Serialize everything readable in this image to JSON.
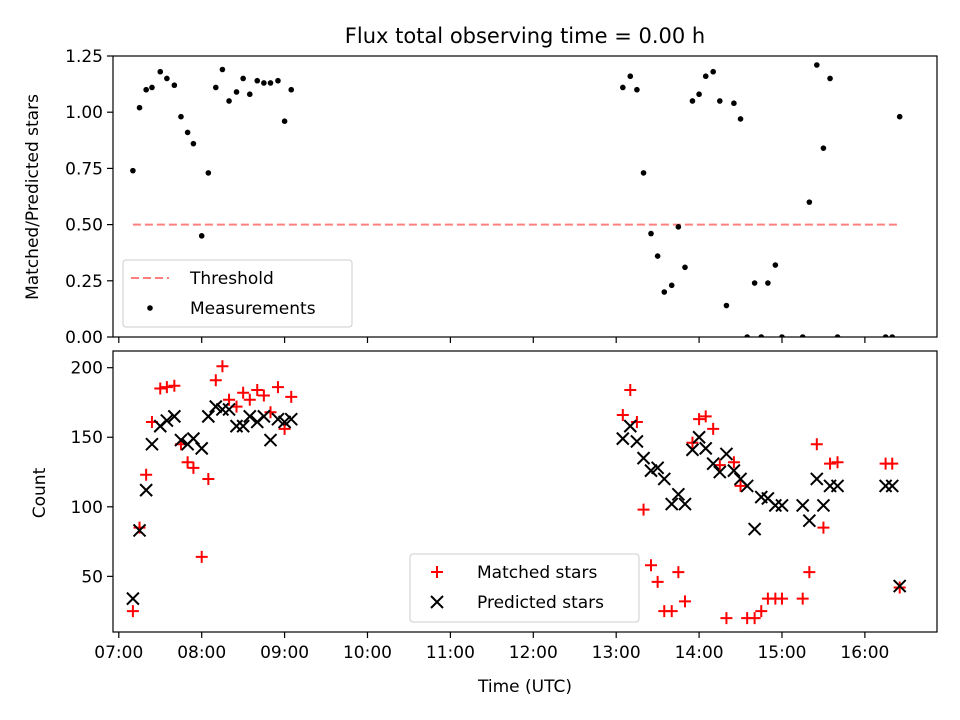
{
  "chart_data": [
    {
      "type": "scatter",
      "title": "Flux total observing time = 0.00 h",
      "ylabel": "Matched/Predicted stars",
      "xlabel": "",
      "xlim": [
        6.93,
        16.87
      ],
      "ylim": [
        0.0,
        1.25
      ],
      "x_ticks": [
        7,
        8,
        9,
        10,
        11,
        12,
        13,
        14,
        15,
        16
      ],
      "x_tick_labels": [
        "07:00",
        "08:00",
        "09:00",
        "10:00",
        "11:00",
        "12:00",
        "13:00",
        "14:00",
        "15:00",
        "16:00"
      ],
      "y_ticks": [
        0.0,
        0.25,
        0.5,
        0.75,
        1.0,
        1.25
      ],
      "y_tick_labels": [
        "0.00",
        "0.25",
        "0.50",
        "0.75",
        "1.00",
        "1.25"
      ],
      "legend_position": "lower-left",
      "grid": false,
      "series": [
        {
          "name": "Threshold",
          "style": "dashed-line",
          "color": "#ff7f7f",
          "x": [
            7.17,
            16.42
          ],
          "y": [
            0.5,
            0.5
          ]
        },
        {
          "name": "Measurements",
          "style": "dot",
          "color": "#000000",
          "x": [
            7.17,
            7.25,
            7.33,
            7.4,
            7.5,
            7.58,
            7.67,
            7.75,
            7.83,
            7.9,
            8.0,
            8.08,
            8.17,
            8.25,
            8.33,
            8.42,
            8.5,
            8.58,
            8.67,
            8.75,
            8.83,
            8.92,
            9.0,
            9.08,
            13.08,
            13.17,
            13.25,
            13.33,
            13.42,
            13.5,
            13.58,
            13.67,
            13.75,
            13.83,
            13.92,
            14.0,
            14.08,
            14.17,
            14.25,
            14.33,
            14.42,
            14.5,
            14.58,
            14.67,
            14.75,
            14.83,
            14.92,
            15.0,
            15.25,
            15.33,
            15.42,
            15.5,
            15.58,
            15.67,
            16.25,
            16.33,
            16.42
          ],
          "y": [
            0.74,
            1.02,
            1.1,
            1.11,
            1.18,
            1.15,
            1.12,
            0.98,
            0.91,
            0.86,
            0.45,
            0.73,
            1.11,
            1.19,
            1.05,
            1.09,
            1.15,
            1.08,
            1.14,
            1.13,
            1.13,
            1.14,
            0.96,
            1.1,
            1.11,
            1.16,
            1.1,
            0.73,
            0.46,
            0.36,
            0.2,
            0.23,
            0.49,
            0.31,
            1.05,
            1.08,
            1.16,
            1.18,
            1.05,
            0.14,
            1.04,
            0.97,
            0.0,
            0.24,
            0.0,
            0.24,
            0.32,
            0.0,
            0.0,
            0.6,
            1.21,
            0.84,
            1.15,
            0.0,
            0.0,
            0.0,
            0.98
          ]
        }
      ]
    },
    {
      "type": "scatter",
      "title": "",
      "ylabel": "Count",
      "xlabel": "Time (UTC)",
      "xlim": [
        6.93,
        16.87
      ],
      "ylim": [
        10,
        212
      ],
      "x_ticks": [
        7,
        8,
        9,
        10,
        11,
        12,
        13,
        14,
        15,
        16
      ],
      "x_tick_labels": [
        "07:00",
        "08:00",
        "09:00",
        "10:00",
        "11:00",
        "12:00",
        "13:00",
        "14:00",
        "15:00",
        "16:00"
      ],
      "y_ticks": [
        50,
        100,
        150,
        200
      ],
      "y_tick_labels": [
        "50",
        "100",
        "150",
        "200"
      ],
      "legend_position": "lower-center",
      "grid": false,
      "series": [
        {
          "name": "Matched stars",
          "style": "plus",
          "color": "#ff0000",
          "x": [
            7.17,
            7.25,
            7.33,
            7.4,
            7.5,
            7.58,
            7.67,
            7.75,
            7.83,
            7.9,
            8.0,
            8.08,
            8.17,
            8.25,
            8.33,
            8.42,
            8.5,
            8.58,
            8.67,
            8.75,
            8.83,
            8.92,
            9.0,
            9.08,
            13.08,
            13.17,
            13.25,
            13.33,
            13.42,
            13.5,
            13.58,
            13.67,
            13.75,
            13.83,
            13.92,
            14.0,
            14.08,
            14.17,
            14.25,
            14.33,
            14.42,
            14.5,
            14.58,
            14.67,
            14.75,
            14.83,
            14.92,
            15.0,
            15.25,
            15.33,
            15.42,
            15.5,
            15.58,
            15.67,
            16.25,
            16.33,
            16.42
          ],
          "y": [
            25,
            85,
            123,
            161,
            185,
            186,
            187,
            145,
            132,
            128,
            64,
            120,
            191,
            201,
            177,
            172,
            182,
            177,
            184,
            180,
            168,
            186,
            156,
            179,
            166,
            184,
            161,
            98,
            58,
            46,
            25,
            25,
            53,
            32,
            146,
            163,
            165,
            156,
            130,
            20,
            132,
            115,
            20,
            20,
            25,
            34,
            34,
            34,
            34,
            53,
            145,
            85,
            131,
            132,
            131,
            131,
            42
          ]
        },
        {
          "name": "Predicted stars",
          "style": "x",
          "color": "#000000",
          "x": [
            7.17,
            7.25,
            7.33,
            7.4,
            7.5,
            7.58,
            7.67,
            7.75,
            7.83,
            7.9,
            8.0,
            8.08,
            8.17,
            8.25,
            8.33,
            8.42,
            8.5,
            8.58,
            8.67,
            8.75,
            8.83,
            8.92,
            9.0,
            9.08,
            13.08,
            13.17,
            13.25,
            13.33,
            13.42,
            13.5,
            13.58,
            13.67,
            13.75,
            13.83,
            13.92,
            14.0,
            14.08,
            14.17,
            14.25,
            14.33,
            14.42,
            14.5,
            14.58,
            14.67,
            14.75,
            14.83,
            14.92,
            15.0,
            15.25,
            15.33,
            15.42,
            15.5,
            15.58,
            15.67,
            16.25,
            16.33,
            16.42
          ],
          "y": [
            34,
            83,
            112,
            145,
            158,
            162,
            165,
            148,
            145,
            149,
            142,
            165,
            172,
            170,
            170,
            158,
            158,
            165,
            161,
            165,
            148,
            163,
            161,
            163,
            149,
            158,
            147,
            135,
            126,
            128,
            120,
            102,
            109,
            102,
            141,
            150,
            142,
            131,
            125,
            138,
            126,
            120,
            115,
            84,
            107,
            106,
            101,
            101,
            101,
            90,
            120,
            101,
            115,
            115,
            115,
            115,
            43
          ]
        }
      ]
    }
  ]
}
